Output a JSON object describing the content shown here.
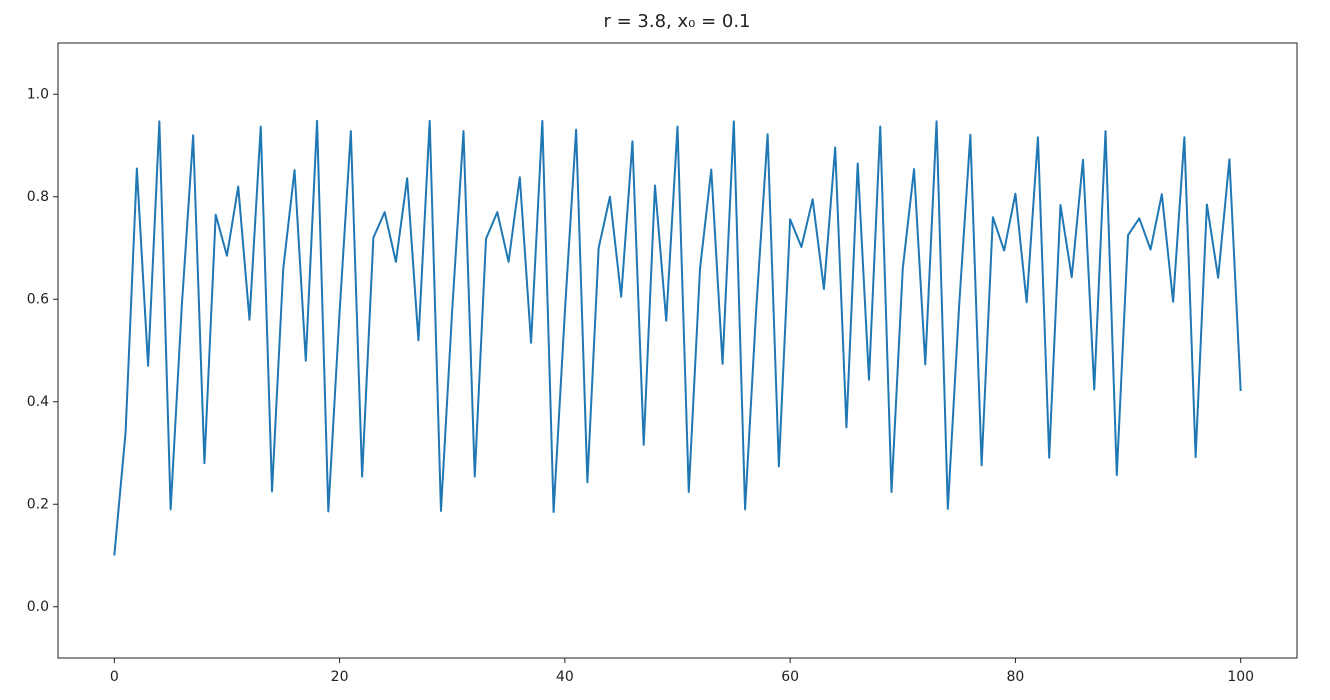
{
  "chart_data": {
    "type": "line",
    "title": "r = 3.8, x₀ = 0.1",
    "x": [
      0,
      1,
      2,
      3,
      4,
      5,
      6,
      7,
      8,
      9,
      10,
      11,
      12,
      13,
      14,
      15,
      16,
      17,
      18,
      19,
      20,
      21,
      22,
      23,
      24,
      25,
      26,
      27,
      28,
      29,
      30,
      31,
      32,
      33,
      34,
      35,
      36,
      37,
      38,
      39,
      40,
      41,
      42,
      43,
      44,
      45,
      46,
      47,
      48,
      49,
      50,
      51,
      52,
      53,
      54,
      55,
      56,
      57,
      58,
      59,
      60,
      61,
      62,
      63,
      64,
      65,
      66,
      67,
      68,
      69,
      70,
      71,
      72,
      73,
      74,
      75,
      76,
      77,
      78,
      79,
      80,
      81,
      82,
      83,
      84,
      85,
      86,
      87,
      88,
      89,
      90,
      91,
      92,
      93,
      94,
      95,
      96,
      97,
      98,
      99,
      100
    ],
    "series": [
      {
        "color": "#1f77b4",
        "values": [
          0.1,
          0.34,
          0.855,
          0.47,
          0.947,
          0.19,
          0.59,
          0.92,
          0.28,
          0.765,
          0.685,
          0.82,
          0.56,
          0.937,
          0.225,
          0.66,
          0.852,
          0.48,
          0.948,
          0.186,
          0.575,
          0.928,
          0.254,
          0.72,
          0.77,
          0.673,
          0.836,
          0.52,
          0.948,
          0.187,
          0.58,
          0.928,
          0.254,
          0.718,
          0.77,
          0.673,
          0.838,
          0.515,
          0.948,
          0.185,
          0.575,
          0.931,
          0.243,
          0.7,
          0.8,
          0.605,
          0.908,
          0.316,
          0.822,
          0.558,
          0.937,
          0.224,
          0.66,
          0.853,
          0.474,
          0.947,
          0.19,
          0.585,
          0.922,
          0.274,
          0.756,
          0.702,
          0.795,
          0.62,
          0.896,
          0.35,
          0.865,
          0.443,
          0.937,
          0.224,
          0.66,
          0.854,
          0.473,
          0.947,
          0.191,
          0.586,
          0.921,
          0.276,
          0.76,
          0.695,
          0.806,
          0.594,
          0.916,
          0.291,
          0.784,
          0.643,
          0.872,
          0.424,
          0.928,
          0.257,
          0.725,
          0.758,
          0.697,
          0.805,
          0.595,
          0.916,
          0.292,
          0.785,
          0.642,
          0.873,
          0.421
        ]
      }
    ],
    "xlim": [
      -5,
      105
    ],
    "xticks": [
      0,
      20,
      40,
      60,
      80,
      100
    ],
    "ylim": [
      -0.1,
      1.1
    ],
    "yticks": [
      {
        "value": 0,
        "label": "0.0"
      },
      {
        "value": 0.2,
        "label": "0.2"
      },
      {
        "value": 0.4,
        "label": "0.4"
      },
      {
        "value": 0.6,
        "label": "0.6"
      },
      {
        "value": 0.8,
        "label": "0.8"
      },
      {
        "value": 1,
        "label": "1.0"
      }
    ]
  }
}
